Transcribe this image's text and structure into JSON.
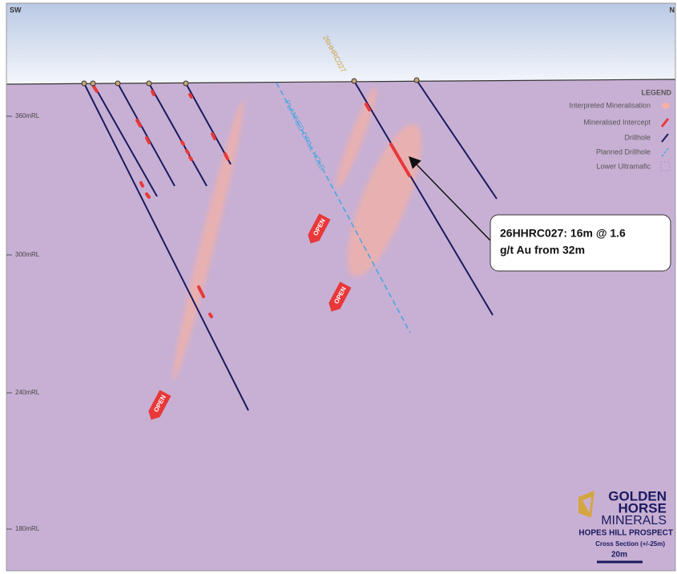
{
  "header": {
    "left_direction": "SW",
    "right_direction": "N"
  },
  "rl_labels": [
    "360mRL",
    "300mRL",
    "240mRL",
    "180mRL"
  ],
  "drillhole_label": "26HHRC027",
  "planned_label": "PLANNED DRILL HOLE",
  "open_labels": [
    "OPEN",
    "OPEN",
    "OPEN"
  ],
  "legend": {
    "title": "LEGEND",
    "items": [
      "Interpreted Mineralisation",
      "Mineralised Intercept",
      "Drillhole",
      "Planned Drillhole",
      "Lower Ultramafic"
    ]
  },
  "callout": {
    "lines": [
      "26HHRC027: 16m @ 1.6",
      "g/t Au from 32m"
    ]
  },
  "logo": {
    "lines": [
      "GOLDEN",
      "HORSE",
      "MINERALS"
    ]
  },
  "footer": {
    "prospect": "HOPES HILL PROSPECT",
    "section": "Cross Section (+/-25m)",
    "scale": "20m"
  }
}
